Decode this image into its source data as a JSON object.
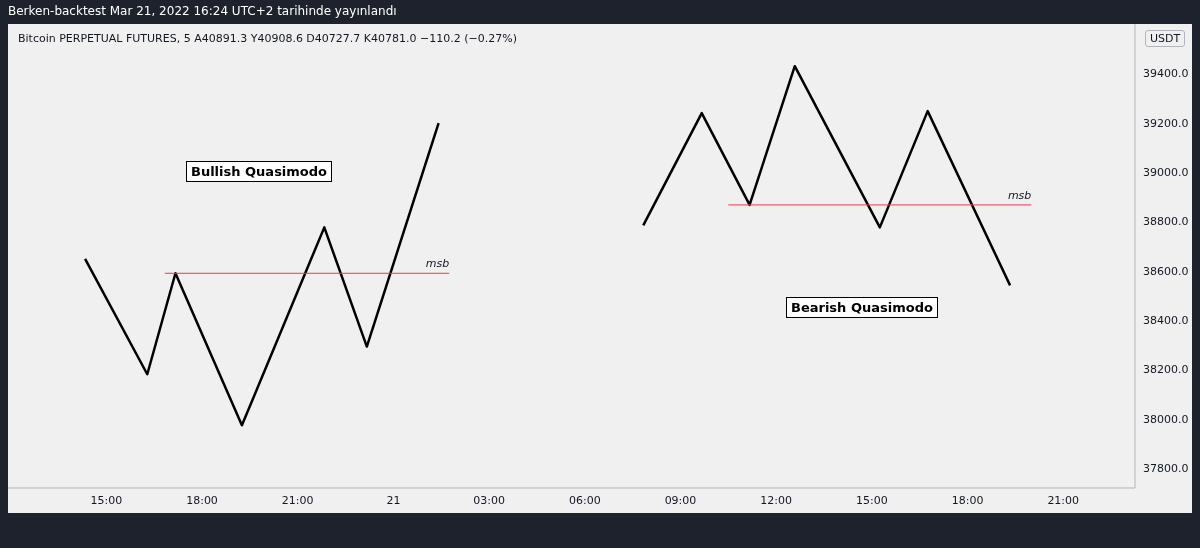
{
  "chart_data": {
    "type": "line",
    "title": "Berken-backtest Mar 21, 2022 16:24 UTC+2 tarihinde yayınlandı",
    "subtitle": "Bitcoin PERPETUAL FUTURES, 5  A40891.3  Y40908.6  D40727.7  K40781.0  −110.2 (−0.27%)",
    "ylabel": "USDT",
    "xlim": [
      "2022-03-20T11:55",
      "2022-03-21T23:15"
    ],
    "xticks": [
      {
        "value": "2022-03-20T15:00",
        "label": "15:00"
      },
      {
        "value": "2022-03-20T18:00",
        "label": "18:00"
      },
      {
        "value": "2022-03-20T21:00",
        "label": "21:00"
      },
      {
        "value": "2022-03-21T00:00",
        "label": "21"
      },
      {
        "value": "2022-03-21T03:00",
        "label": "03:00"
      },
      {
        "value": "2022-03-21T06:00",
        "label": "06:00"
      },
      {
        "value": "2022-03-21T09:00",
        "label": "09:00"
      },
      {
        "value": "2022-03-21T12:00",
        "label": "12:00"
      },
      {
        "value": "2022-03-21T15:00",
        "label": "15:00"
      },
      {
        "value": "2022-03-21T18:00",
        "label": "18:00"
      },
      {
        "value": "2022-03-21T21:00",
        "label": "21:00"
      }
    ],
    "ylim": [
      37720,
      39600
    ],
    "yticks": [
      {
        "value": 37800,
        "label": "37800.0"
      },
      {
        "value": 38000,
        "label": "38000.0"
      },
      {
        "value": 38200,
        "label": "38200.0"
      },
      {
        "value": 38400,
        "label": "38400.0"
      },
      {
        "value": 38600,
        "label": "38600.0"
      },
      {
        "value": 38800,
        "label": "38800.0"
      },
      {
        "value": 39000,
        "label": "39000.0"
      },
      {
        "value": 39200,
        "label": "39200.0"
      },
      {
        "value": 39400,
        "label": "39400.0"
      }
    ],
    "grid": false,
    "legend": false,
    "series": [
      {
        "type": "line",
        "color": "#000000",
        "x": [
          "2022-03-20T14:20",
          "2022-03-20T16:17",
          "2022-03-20T17:10",
          "2022-03-20T19:15",
          "2022-03-20T21:50",
          "2022-03-20T23:10",
          "2022-03-21T01:25"
        ],
        "values": [
          38648,
          38181,
          38590,
          37974,
          38776,
          38293,
          39198
        ]
      },
      {
        "type": "line",
        "color": "#000000",
        "x": [
          "2022-03-21T07:50",
          "2022-03-21T09:40",
          "2022-03-21T11:10",
          "2022-03-21T12:35",
          "2022-03-21T15:15",
          "2022-03-21T16:45",
          "2022-03-21T19:20"
        ],
        "values": [
          38784,
          39239,
          38867,
          39429,
          38776,
          39247,
          38541
        ]
      },
      {
        "type": "line",
        "name": "msb",
        "color": "#f23645",
        "x": [
          "2022-03-20T16:50",
          "2022-03-21T01:45"
        ],
        "values": [
          38590,
          38590
        ]
      },
      {
        "type": "line",
        "name": "msb",
        "color": "#f23645",
        "x": [
          "2022-03-21T10:30",
          "2022-03-21T20:00"
        ],
        "values": [
          38867,
          38867
        ]
      }
    ],
    "annotations": [
      "Bullish Quasimodo",
      "Bearish Quasimodo"
    ]
  }
}
